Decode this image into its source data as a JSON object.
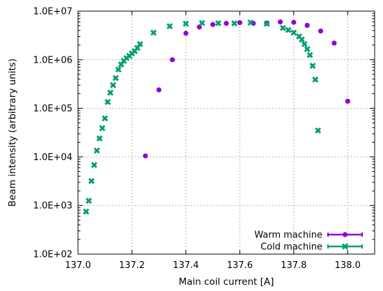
{
  "chart_data": {
    "type": "scatter",
    "title": "",
    "xlabel": "Main coil current [A]",
    "ylabel": "Beam intensity (arbitrary units)",
    "xlim": [
      137.0,
      138.1
    ],
    "ylim": [
      100,
      10000000
    ],
    "y_scale": "log",
    "grid": true,
    "legend_position": "bottom-right",
    "x_ticks": [
      137.0,
      137.2,
      137.4,
      137.6,
      137.8,
      138.0
    ],
    "x_tick_labels": [
      "137.0",
      "137.2",
      "137.4",
      "137.6",
      "137.8",
      "138.0"
    ],
    "y_ticks": [
      100,
      1000,
      10000,
      100000,
      1000000,
      10000000
    ],
    "y_tick_labels": [
      "1.0E+02",
      "1.0E+03",
      "1.0E+04",
      "1.0E+05",
      "1.0E+06",
      "1.0E+07"
    ],
    "series": [
      {
        "name": "Warm machine",
        "color": "#9400d3",
        "marker": "circle",
        "points": [
          [
            137.25,
            10500
          ],
          [
            137.3,
            240000
          ],
          [
            137.35,
            1000000
          ],
          [
            137.4,
            3500000
          ],
          [
            137.45,
            4700000
          ],
          [
            137.5,
            5300000
          ],
          [
            137.55,
            5600000
          ],
          [
            137.6,
            5800000
          ],
          [
            137.65,
            5600000
          ],
          [
            137.7,
            5700000
          ],
          [
            137.75,
            6000000
          ],
          [
            137.8,
            5900000
          ],
          [
            137.85,
            5100000
          ],
          [
            137.9,
            3900000
          ],
          [
            137.95,
            2200000
          ],
          [
            138.0,
            140000
          ]
        ]
      },
      {
        "name": "Cold machine",
        "color": "#009e73",
        "marker": "x",
        "points": [
          [
            137.03,
            750
          ],
          [
            137.04,
            1250
          ],
          [
            137.05,
            3200
          ],
          [
            137.06,
            6800
          ],
          [
            137.07,
            13500
          ],
          [
            137.08,
            24000
          ],
          [
            137.09,
            39000
          ],
          [
            137.1,
            62000
          ],
          [
            137.11,
            135000
          ],
          [
            137.12,
            210000
          ],
          [
            137.13,
            300000
          ],
          [
            137.14,
            420000
          ],
          [
            137.15,
            630000
          ],
          [
            137.16,
            800000
          ],
          [
            137.17,
            950000
          ],
          [
            137.18,
            1080000
          ],
          [
            137.19,
            1200000
          ],
          [
            137.2,
            1350000
          ],
          [
            137.21,
            1500000
          ],
          [
            137.22,
            1750000
          ],
          [
            137.23,
            2100000
          ],
          [
            137.28,
            3600000
          ],
          [
            137.34,
            4900000
          ],
          [
            137.4,
            5500000
          ],
          [
            137.46,
            5700000
          ],
          [
            137.52,
            5650000
          ],
          [
            137.58,
            5600000
          ],
          [
            137.64,
            5800000
          ],
          [
            137.7,
            5500000
          ],
          [
            137.76,
            4500000
          ],
          [
            137.78,
            4100000
          ],
          [
            137.8,
            3600000
          ],
          [
            137.82,
            3000000
          ],
          [
            137.83,
            2600000
          ],
          [
            137.84,
            2100000
          ],
          [
            137.85,
            1650000
          ],
          [
            137.86,
            1250000
          ],
          [
            137.87,
            750000
          ],
          [
            137.88,
            390000
          ],
          [
            137.89,
            35000
          ]
        ]
      }
    ]
  }
}
